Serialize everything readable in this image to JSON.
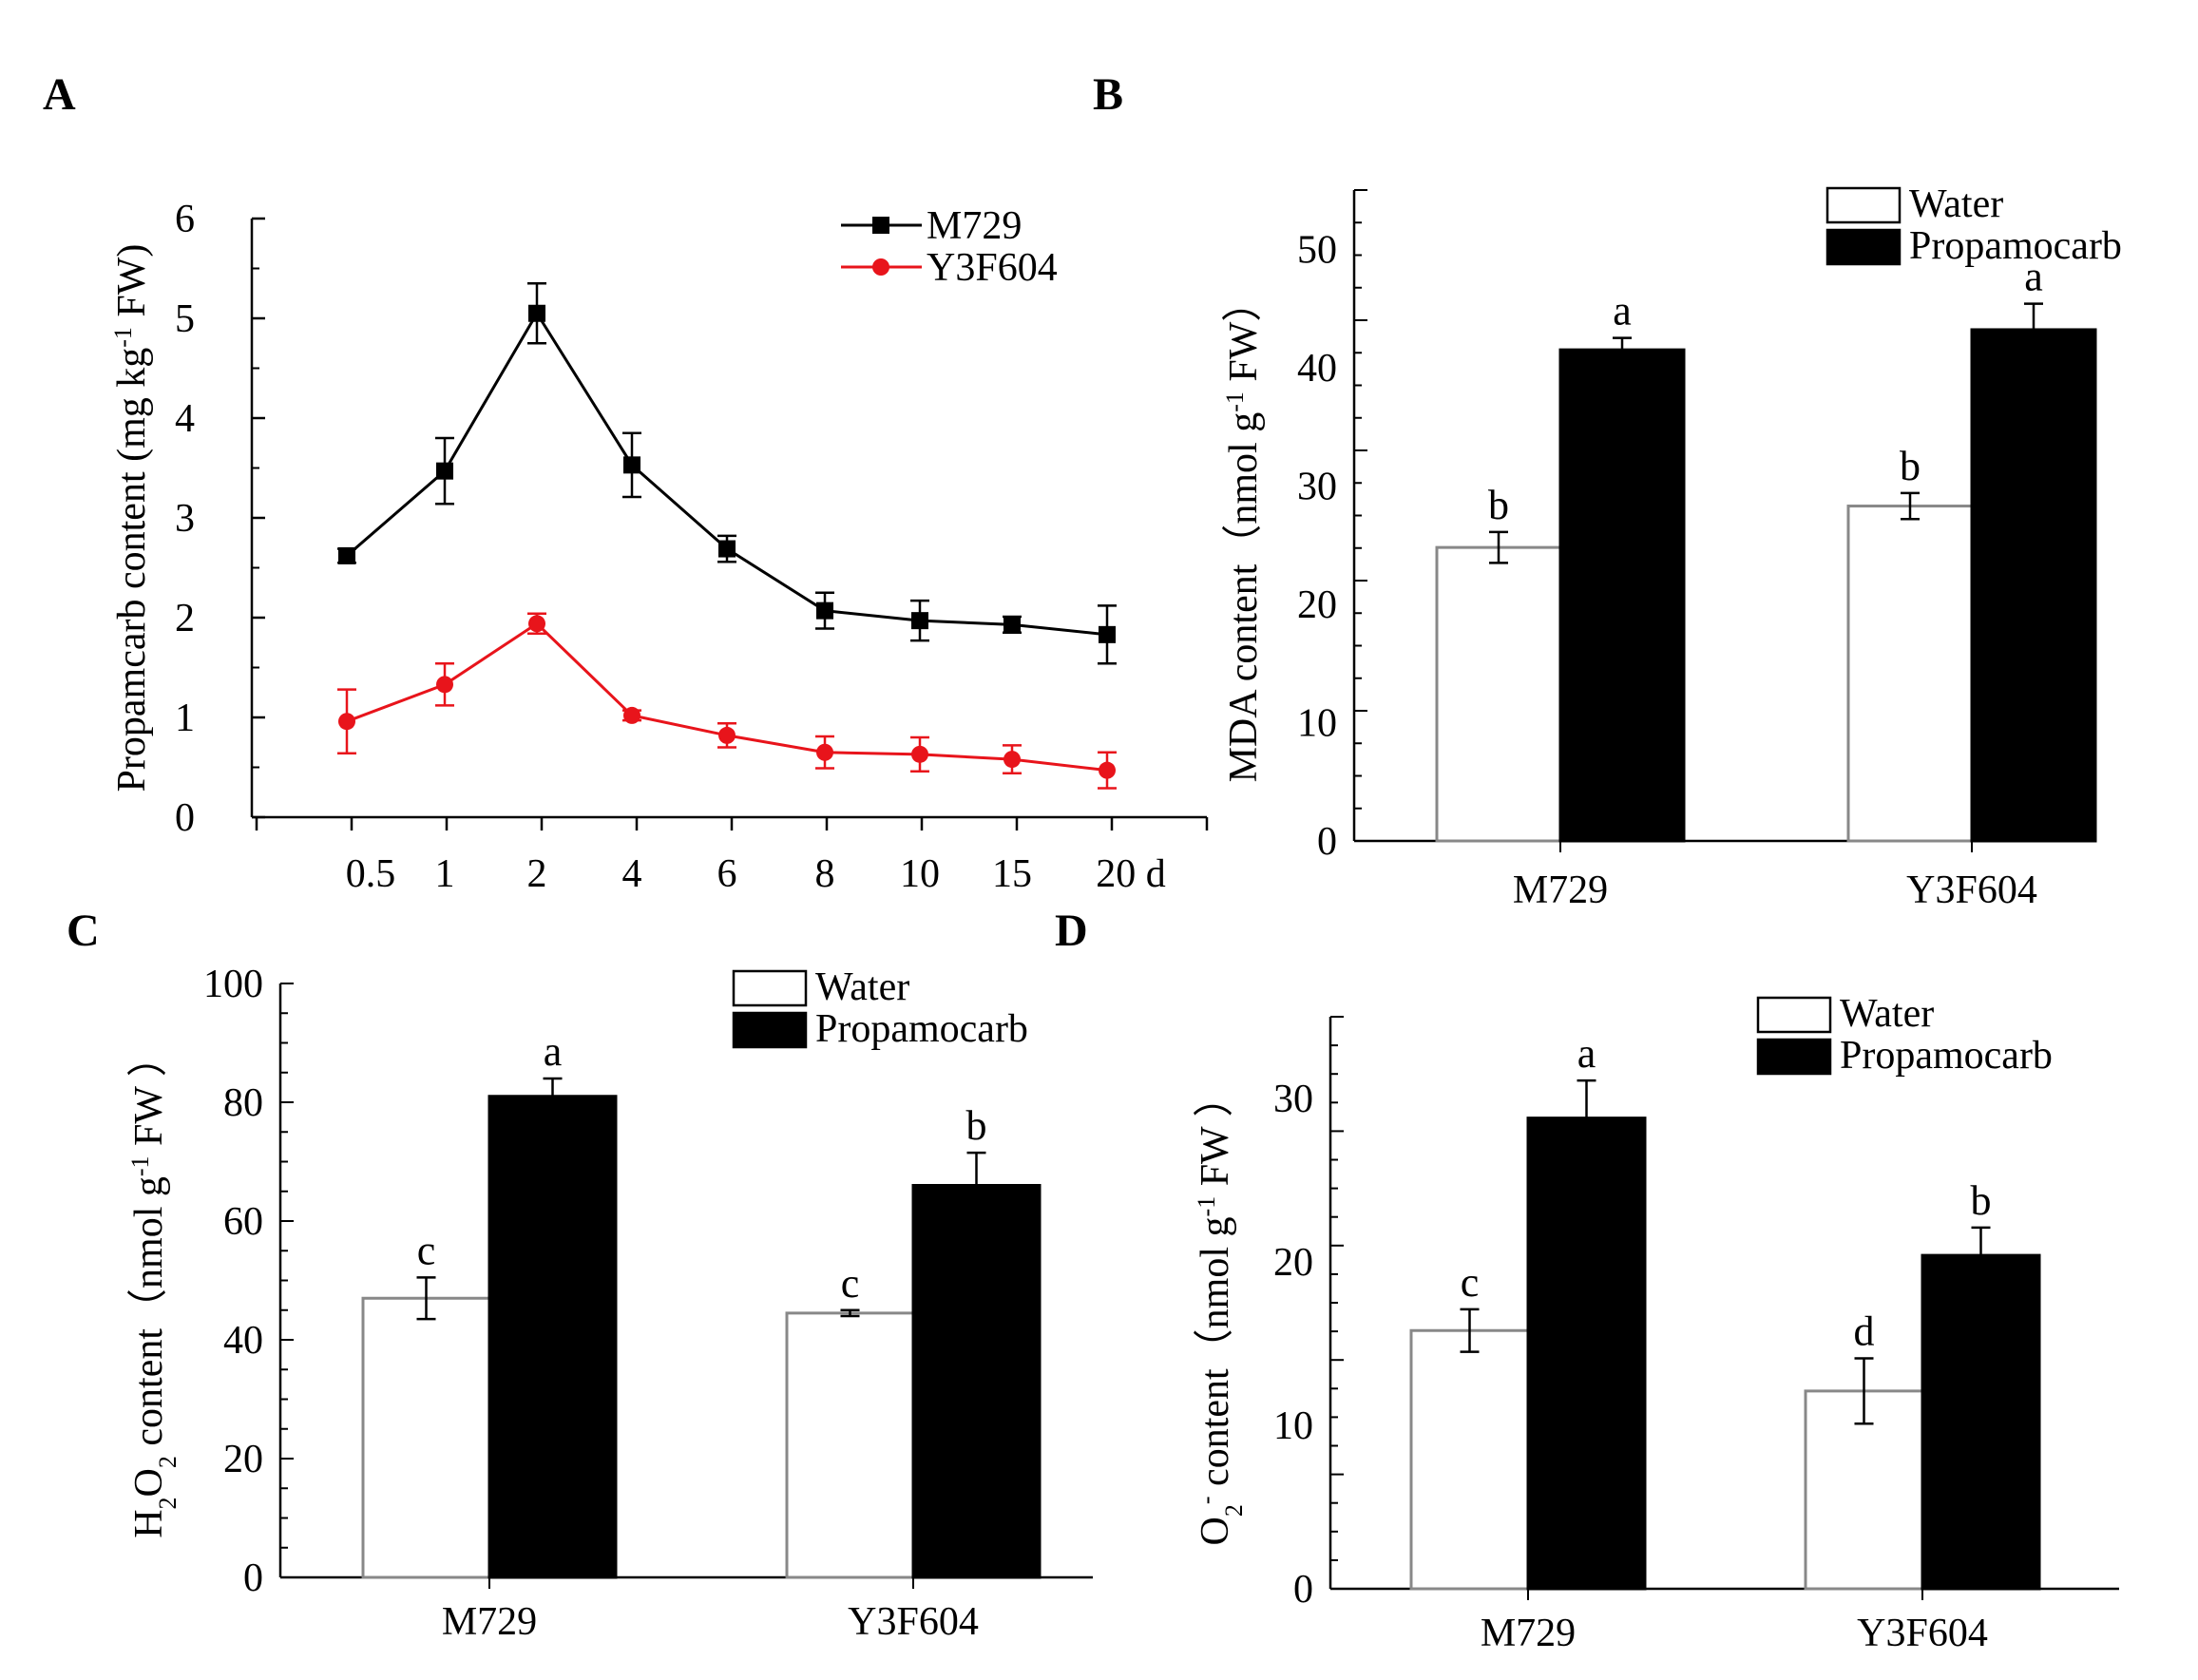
{
  "chart_data": [
    {
      "panel": "A",
      "type": "line",
      "x": [
        "0.5",
        "1",
        "2",
        "4",
        "6",
        "8",
        "10",
        "15",
        "20 d"
      ],
      "ylabel_main": "Propamcarb content (mg kg",
      "ylabel_sup": "-1",
      "ylabel_end": " FW)",
      "ylim": [
        0,
        6
      ],
      "yticks": [
        "0",
        "1",
        "2",
        "3",
        "4",
        "5",
        "6"
      ],
      "colors": {
        "M729": "#000000",
        "Y3F604": "#e8141b"
      },
      "series": [
        {
          "name": "M729",
          "values": [
            2.62,
            3.47,
            5.05,
            3.53,
            2.69,
            2.07,
            1.97,
            1.93,
            1.83
          ],
          "errors": [
            0.07,
            0.33,
            0.3,
            0.32,
            0.13,
            0.18,
            0.2,
            0.08,
            0.29
          ]
        },
        {
          "name": "Y3F604",
          "values": [
            0.96,
            1.33,
            1.94,
            1.02,
            0.82,
            0.65,
            0.63,
            0.58,
            0.47
          ],
          "errors": [
            0.32,
            0.21,
            0.1,
            0.05,
            0.12,
            0.16,
            0.17,
            0.14,
            0.18
          ]
        }
      ]
    },
    {
      "panel": "B",
      "type": "bar",
      "categories": [
        "M729",
        "Y3F604"
      ],
      "ylabel_main": "MDA content（nmol g",
      "ylabel_sup": "-1",
      "ylabel_end": " FW）",
      "ylim": [
        0,
        55
      ],
      "yticks": [
        "0",
        "10",
        "20",
        "30",
        "40",
        "50"
      ],
      "legend": [
        "Water",
        "Propamocarb"
      ],
      "series": [
        {
          "name": "Water",
          "values": [
            24.8,
            28.3
          ],
          "errors": [
            1.3,
            1.1
          ],
          "letters": [
            "b",
            "b"
          ]
        },
        {
          "name": "Propamocarb",
          "values": [
            41.5,
            43.2
          ],
          "errors": [
            1.0,
            2.2
          ],
          "letters": [
            "a",
            "a"
          ]
        }
      ]
    },
    {
      "panel": "C",
      "type": "bar",
      "categories": [
        "M729",
        "Y3F604"
      ],
      "ylabel_pre": "H",
      "ylabel_sub1": "2",
      "ylabel_mid": "O",
      "ylabel_sub2": "2",
      "ylabel_main": " content（nmol g",
      "ylabel_sup": "-1",
      "ylabel_end": " FW ）",
      "ylim": [
        0,
        100
      ],
      "yticks": [
        "0",
        "20",
        "40",
        "60",
        "80",
        "100"
      ],
      "legend": [
        "Water",
        "Propamocarb"
      ],
      "series": [
        {
          "name": "Water",
          "values": [
            47,
            44.5
          ],
          "errors": [
            3.5,
            0.5
          ],
          "letters": [
            "c",
            "c"
          ]
        },
        {
          "name": "Propamocarb",
          "values": [
            81,
            66
          ],
          "errors": [
            3,
            5.5
          ],
          "letters": [
            "a",
            "b"
          ]
        }
      ]
    },
    {
      "panel": "D",
      "type": "bar",
      "categories": [
        "M729",
        "Y3F604"
      ],
      "ylabel_pre": "O",
      "ylabel_sub1": "2",
      "ylabel_sup0": "-",
      "ylabel_main": " content（nmol g",
      "ylabel_sup": "-1",
      "ylabel_end": " FW ）",
      "ylim": [
        0,
        35
      ],
      "yticks": [
        "0",
        "10",
        "20",
        "30"
      ],
      "legend": [
        "Water",
        "Propamocarb"
      ],
      "series": [
        {
          "name": "Water",
          "values": [
            15.8,
            12.1
          ],
          "errors": [
            1.3,
            2.0
          ],
          "letters": [
            "c",
            "d"
          ]
        },
        {
          "name": "Propamocarb",
          "values": [
            28.8,
            20.4
          ],
          "errors": [
            2.3,
            1.7
          ],
          "letters": [
            "a",
            "b"
          ]
        }
      ]
    }
  ],
  "panel_letters": [
    "A",
    "B",
    "C",
    "D"
  ]
}
